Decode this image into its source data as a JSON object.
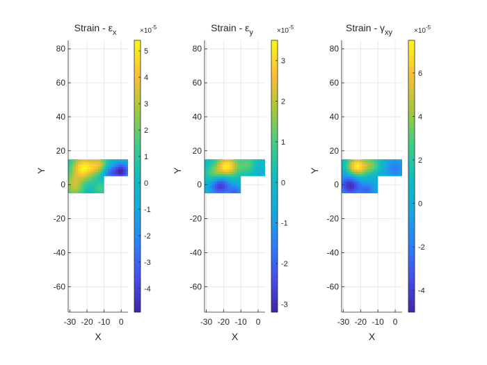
{
  "chart_data": [
    {
      "type": "heatmap",
      "title_main": "Strain - ",
      "title_symbol": "ε",
      "title_sub": "x",
      "xlabel": "X",
      "ylabel": "Y",
      "xlim": [
        -31,
        4
      ],
      "ylim": [
        -75,
        85
      ],
      "xticks": [
        -30,
        -20,
        -10,
        0
      ],
      "xtick_labels": [
        "-30",
        "-20",
        "-10",
        "0"
      ],
      "yticks": [
        80,
        60,
        40,
        20,
        0,
        -20,
        -40,
        -60
      ],
      "ytick_labels": [
        "80",
        "60",
        "40",
        "20",
        "0",
        "-20",
        "-40",
        "-60"
      ],
      "grid": true,
      "colorbar": {
        "multiplier": "×10",
        "exponent": "-5",
        "range": [
          -4.9,
          5.4
        ],
        "ticks": [
          5,
          4,
          3,
          2,
          1,
          0,
          -1,
          -2,
          -3,
          -4
        ],
        "tick_labels": [
          "5",
          "4",
          "3",
          "2",
          "1",
          "0",
          "-1",
          "-2",
          "-3",
          "-4"
        ]
      },
      "hotspots": [
        {
          "x": -22,
          "y": 10,
          "value": 5.2,
          "spread": 7
        },
        {
          "x": -13,
          "y": 12,
          "value": 3.0,
          "spread": 5
        },
        {
          "x": -28,
          "y": 2,
          "value": 2.0,
          "spread": 5
        },
        {
          "x": -27,
          "y": -3,
          "value": 2.0,
          "spread": 5
        },
        {
          "x": 0,
          "y": 8,
          "value": -4.8,
          "spread": 5
        },
        {
          "x": -7,
          "y": 7,
          "value": -2.5,
          "spread": 4
        },
        {
          "x": -12,
          "y": -2,
          "value": 1.5,
          "spread": 4
        }
      ]
    },
    {
      "type": "heatmap",
      "title_main": "Strain - ",
      "title_symbol": "ε",
      "title_sub": "y",
      "xlabel": "X",
      "ylabel": "Y",
      "xlim": [
        -31,
        4
      ],
      "ylim": [
        -75,
        85
      ],
      "xticks": [
        -30,
        -20,
        -10,
        0
      ],
      "xtick_labels": [
        "-30",
        "-20",
        "-10",
        "0"
      ],
      "yticks": [
        80,
        60,
        40,
        20,
        0,
        -20,
        -40,
        -60
      ],
      "ytick_labels": [
        "80",
        "60",
        "40",
        "20",
        "0",
        "-20",
        "-40",
        "-60"
      ],
      "grid": true,
      "colorbar": {
        "multiplier": "×10",
        "exponent": "-5",
        "range": [
          -3.2,
          3.5
        ],
        "ticks": [
          3,
          2,
          1,
          0,
          -1,
          -2,
          -3
        ],
        "tick_labels": [
          "3",
          "2",
          "1",
          "0",
          "-1",
          "-2",
          "-3"
        ]
      },
      "hotspots": [
        {
          "x": -18,
          "y": 11,
          "value": 3.4,
          "spread": 6
        },
        {
          "x": -25,
          "y": 6,
          "value": 1.5,
          "spread": 5
        },
        {
          "x": -6,
          "y": 12,
          "value": 1.2,
          "spread": 5
        },
        {
          "x": -22,
          "y": 0,
          "value": -3.0,
          "spread": 6
        },
        {
          "x": -13,
          "y": -4,
          "value": -1.8,
          "spread": 4
        },
        {
          "x": 0,
          "y": 9,
          "value": -0.4,
          "spread": 5
        }
      ]
    },
    {
      "type": "heatmap",
      "title_main": "Strain - ",
      "title_symbol": "γ",
      "title_sub": "xy",
      "xlabel": "X",
      "ylabel": "Y",
      "xlim": [
        -31,
        4
      ],
      "ylim": [
        -75,
        85
      ],
      "xticks": [
        -30,
        -20,
        -10,
        0
      ],
      "xtick_labels": [
        "-30",
        "-20",
        "-10",
        "0"
      ],
      "yticks": [
        80,
        60,
        40,
        20,
        0,
        -20,
        -40,
        -60
      ],
      "ytick_labels": [
        "80",
        "60",
        "40",
        "20",
        "0",
        "-20",
        "-40",
        "-60"
      ],
      "grid": true,
      "colorbar": {
        "multiplier": "×10",
        "exponent": "-5",
        "range": [
          -5.0,
          7.5
        ],
        "ticks": [
          6,
          4,
          2,
          0,
          -2,
          -4
        ],
        "tick_labels": [
          "6",
          "4",
          "2",
          "0",
          "-2",
          "-4"
        ]
      },
      "hotspots": [
        {
          "x": -22,
          "y": 11,
          "value": 7.2,
          "spread": 6
        },
        {
          "x": -13,
          "y": 12,
          "value": 3.0,
          "spread": 5
        },
        {
          "x": -26,
          "y": 0,
          "value": -4.8,
          "spread": 6
        },
        {
          "x": -16,
          "y": -3,
          "value": -2.5,
          "spread": 4
        },
        {
          "x": 0,
          "y": 10,
          "value": -2.0,
          "spread": 5
        },
        {
          "x": -6,
          "y": 8,
          "value": 0.0,
          "spread": 4
        }
      ]
    }
  ]
}
